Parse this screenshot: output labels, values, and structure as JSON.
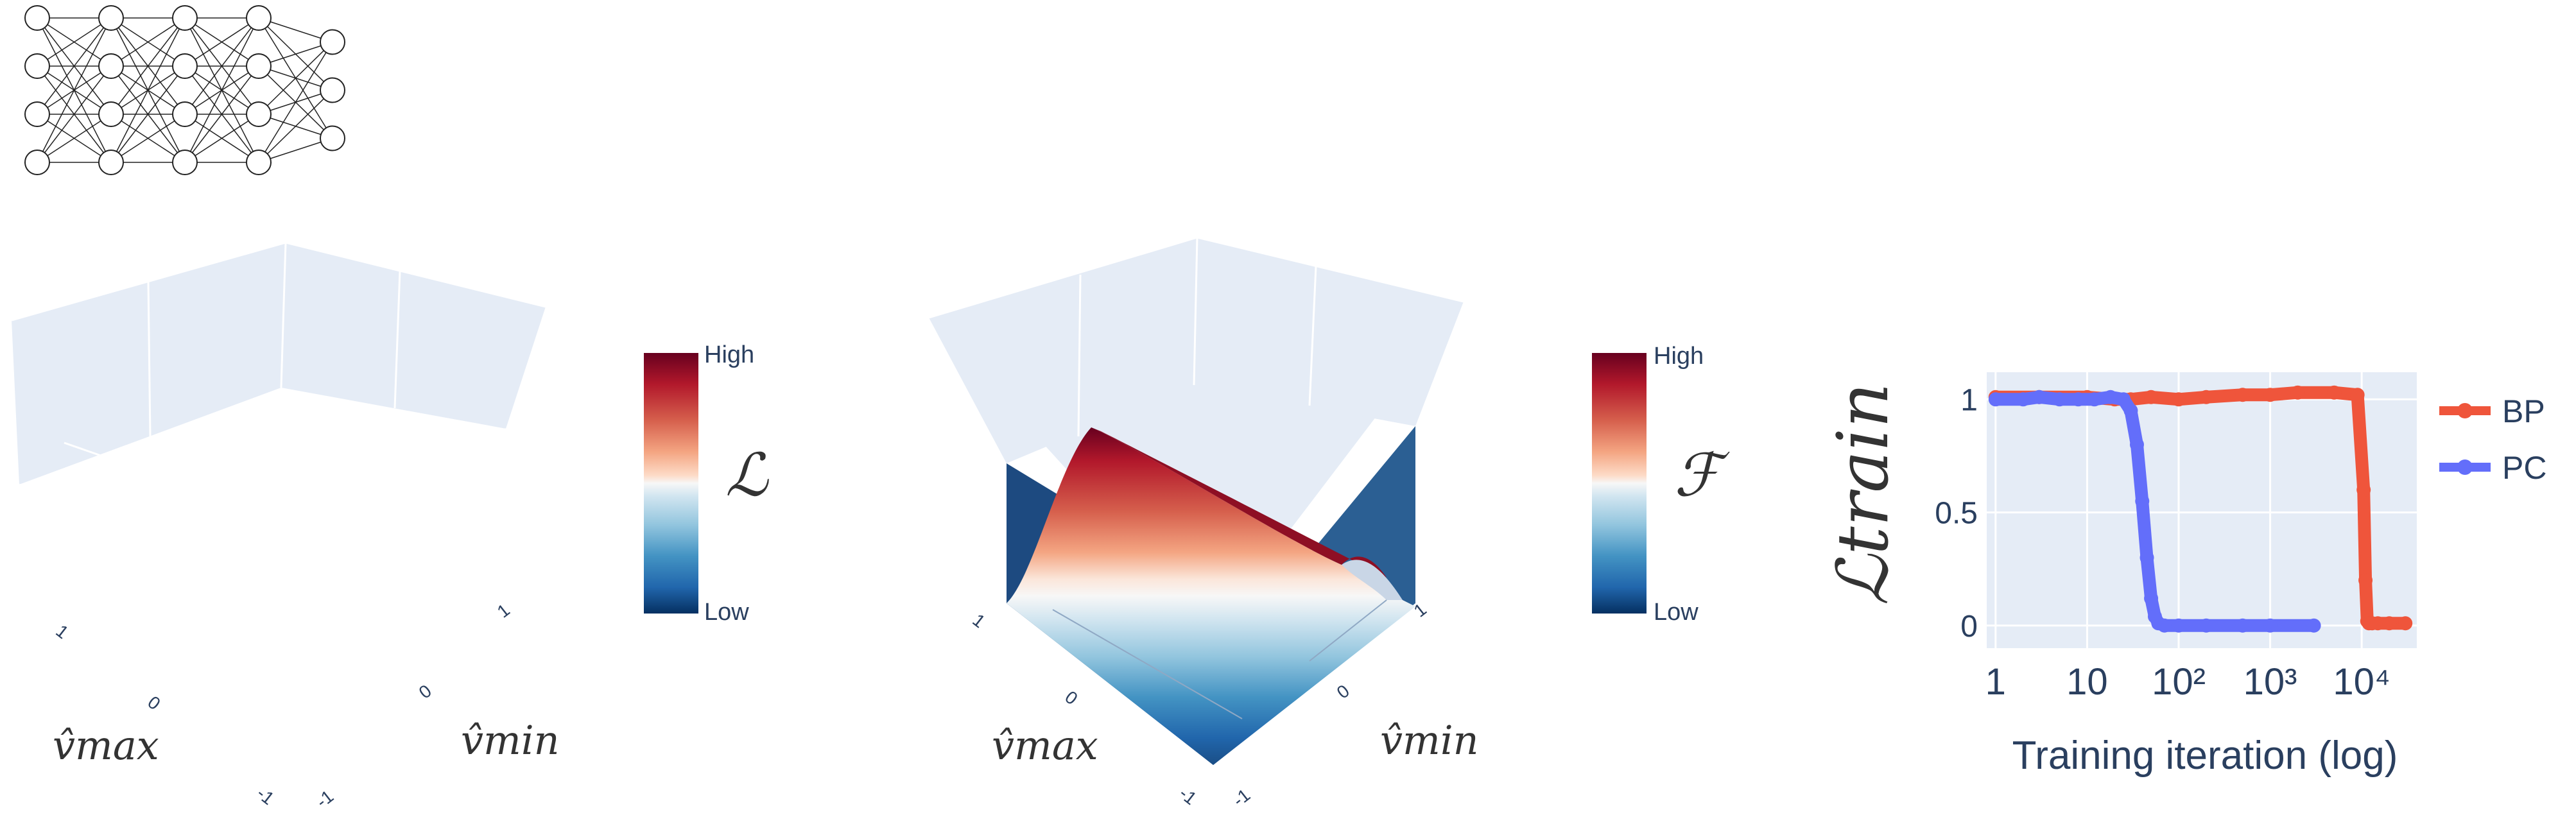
{
  "network": {
    "layers": [
      4,
      4,
      4,
      4,
      3
    ]
  },
  "panels": [
    {
      "colorbar": {
        "top_label": "High",
        "bottom_label": "Low",
        "symbol": "ℒ"
      },
      "axes": {
        "v_max": {
          "label": "v̂max",
          "ticks": [
            "1",
            "0",
            "-1"
          ]
        },
        "v_min": {
          "label": "v̂min",
          "ticks": [
            "1",
            "0",
            "-1"
          ]
        }
      }
    },
    {
      "colorbar": {
        "top_label": "High",
        "bottom_label": "Low",
        "symbol": "ℱ"
      },
      "axes": {
        "v_max": {
          "label": "v̂max",
          "ticks": [
            "1",
            "0",
            "-1"
          ]
        },
        "v_min": {
          "label": "v̂min",
          "ticks": [
            "1",
            "0",
            "-1"
          ]
        }
      }
    }
  ],
  "colors": {
    "bp": "#ef553b",
    "pc": "#636efa",
    "plot_bg": "#e5ecf6",
    "colorbar_high": "#67001f",
    "colorbar_low": "#053061"
  },
  "chart_data": {
    "type": "line",
    "xlabel": "Training iteration (log)",
    "ylabel": "ℒtrain",
    "x_scale": "log",
    "xlim": [
      0.8,
      40000
    ],
    "ylim": [
      -0.1,
      1.12
    ],
    "x_ticks": [
      "1",
      "10",
      "10²",
      "10³",
      "10⁴"
    ],
    "y_ticks": [
      "0",
      "0.5",
      "1"
    ],
    "legend_position": "right",
    "series": [
      {
        "name": "BP",
        "x": [
          1,
          3,
          10,
          20,
          30,
          50,
          100,
          200,
          500,
          1000,
          2000,
          5000,
          9000,
          10500,
          11000,
          11500,
          12000,
          13000,
          15000,
          20000,
          30000
        ],
        "y": [
          1.01,
          1.01,
          1.01,
          1.0,
          1.0,
          1.01,
          1.0,
          1.01,
          1.02,
          1.02,
          1.03,
          1.03,
          1.02,
          0.6,
          0.2,
          0.02,
          0.01,
          0.01,
          0.01,
          0.01,
          0.01
        ]
      },
      {
        "name": "PC",
        "x": [
          1,
          2,
          3,
          5,
          8,
          12,
          18,
          25,
          30,
          35,
          40,
          45,
          50,
          55,
          60,
          70,
          100,
          200,
          500,
          1000,
          3000
        ],
        "y": [
          1.0,
          1.0,
          1.01,
          1.0,
          1.0,
          1.0,
          1.01,
          1.0,
          0.95,
          0.8,
          0.55,
          0.3,
          0.12,
          0.04,
          0.01,
          0.0,
          0.0,
          0.0,
          0.0,
          0.0,
          0.0
        ]
      }
    ]
  }
}
